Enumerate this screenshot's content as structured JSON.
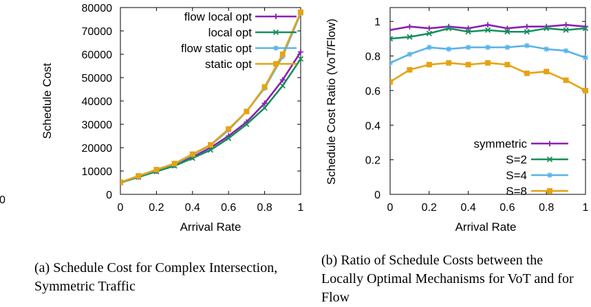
{
  "chart_data": [
    {
      "id": "a",
      "type": "line",
      "ylabel": "Schedule Cost",
      "xlabel": "Arrival Rate",
      "xlim": [
        0,
        1
      ],
      "ylim": [
        0,
        80000
      ],
      "x_ticks": [
        "0",
        "0.2",
        "0.4",
        "0.6",
        "0.8",
        "1"
      ],
      "y_ticks": [
        "0",
        "10000",
        "20000",
        "30000",
        "40000",
        "50000",
        "60000",
        "70000",
        "80000"
      ],
      "legend_position": "top-right",
      "x": [
        0,
        0.1,
        0.2,
        0.3,
        0.4,
        0.5,
        0.6,
        0.7,
        0.8,
        0.9,
        1.0
      ],
      "series": [
        {
          "name": "flow local opt",
          "color": "#8a1fb4",
          "marker": "plus",
          "values": [
            5000,
            7500,
            10000,
            12500,
            16000,
            20000,
            25000,
            31000,
            39000,
            49000,
            61000
          ]
        },
        {
          "name": "local opt",
          "color": "#178e5c",
          "marker": "x",
          "values": [
            5000,
            7400,
            9800,
            12200,
            15500,
            19000,
            24000,
            30000,
            37000,
            46500,
            58000
          ]
        },
        {
          "name": "flow static opt",
          "color": "#59b4e8",
          "marker": "star",
          "values": [
            5100,
            7800,
            10500,
            13000,
            17000,
            21000,
            27500,
            35500,
            45500,
            59000,
            77500
          ]
        },
        {
          "name": "static opt",
          "color": "#e6a312",
          "marker": "square",
          "values": [
            5200,
            7900,
            10600,
            13200,
            17200,
            21200,
            28000,
            35500,
            46000,
            60000,
            78000
          ]
        }
      ]
    },
    {
      "id": "b",
      "type": "line",
      "ylabel": "Schedule Cost Ratio (VoT/Flow)",
      "xlabel": "Arrival Rate",
      "xlim": [
        0,
        1
      ],
      "ylim": [
        0,
        1.08
      ],
      "x_ticks": [
        "0",
        "0.2",
        "0.4",
        "0.6",
        "0.8",
        "1"
      ],
      "y_ticks": [
        "0",
        "0.2",
        "0.4",
        "0.6",
        "0.8",
        "1"
      ],
      "legend_position": "bottom-right",
      "x": [
        0,
        0.1,
        0.2,
        0.3,
        0.4,
        0.5,
        0.6,
        0.7,
        0.8,
        0.9,
        1.0
      ],
      "series": [
        {
          "name": "symmetric",
          "color": "#8a1fb4",
          "marker": "plus",
          "values": [
            0.95,
            0.97,
            0.96,
            0.97,
            0.96,
            0.98,
            0.96,
            0.97,
            0.97,
            0.98,
            0.97
          ]
        },
        {
          "name": "S=2",
          "color": "#178e5c",
          "marker": "x",
          "values": [
            0.9,
            0.91,
            0.93,
            0.96,
            0.94,
            0.95,
            0.94,
            0.94,
            0.96,
            0.95,
            0.96
          ]
        },
        {
          "name": "S=4",
          "color": "#59b4e8",
          "marker": "star",
          "values": [
            0.76,
            0.81,
            0.85,
            0.84,
            0.85,
            0.85,
            0.85,
            0.86,
            0.84,
            0.83,
            0.79
          ]
        },
        {
          "name": "S=8",
          "color": "#e6a312",
          "marker": "square",
          "values": [
            0.65,
            0.72,
            0.75,
            0.76,
            0.75,
            0.76,
            0.75,
            0.7,
            0.71,
            0.66,
            0.6
          ]
        }
      ]
    }
  ],
  "captions": {
    "a": "(a) Schedule Cost for Complex Intersection, Symmetric Traffic",
    "b": "(b) Ratio of Schedule Costs between the Locally Optimal Mechanisms for VoT and for Flow"
  },
  "left_edge_fragment": "0"
}
